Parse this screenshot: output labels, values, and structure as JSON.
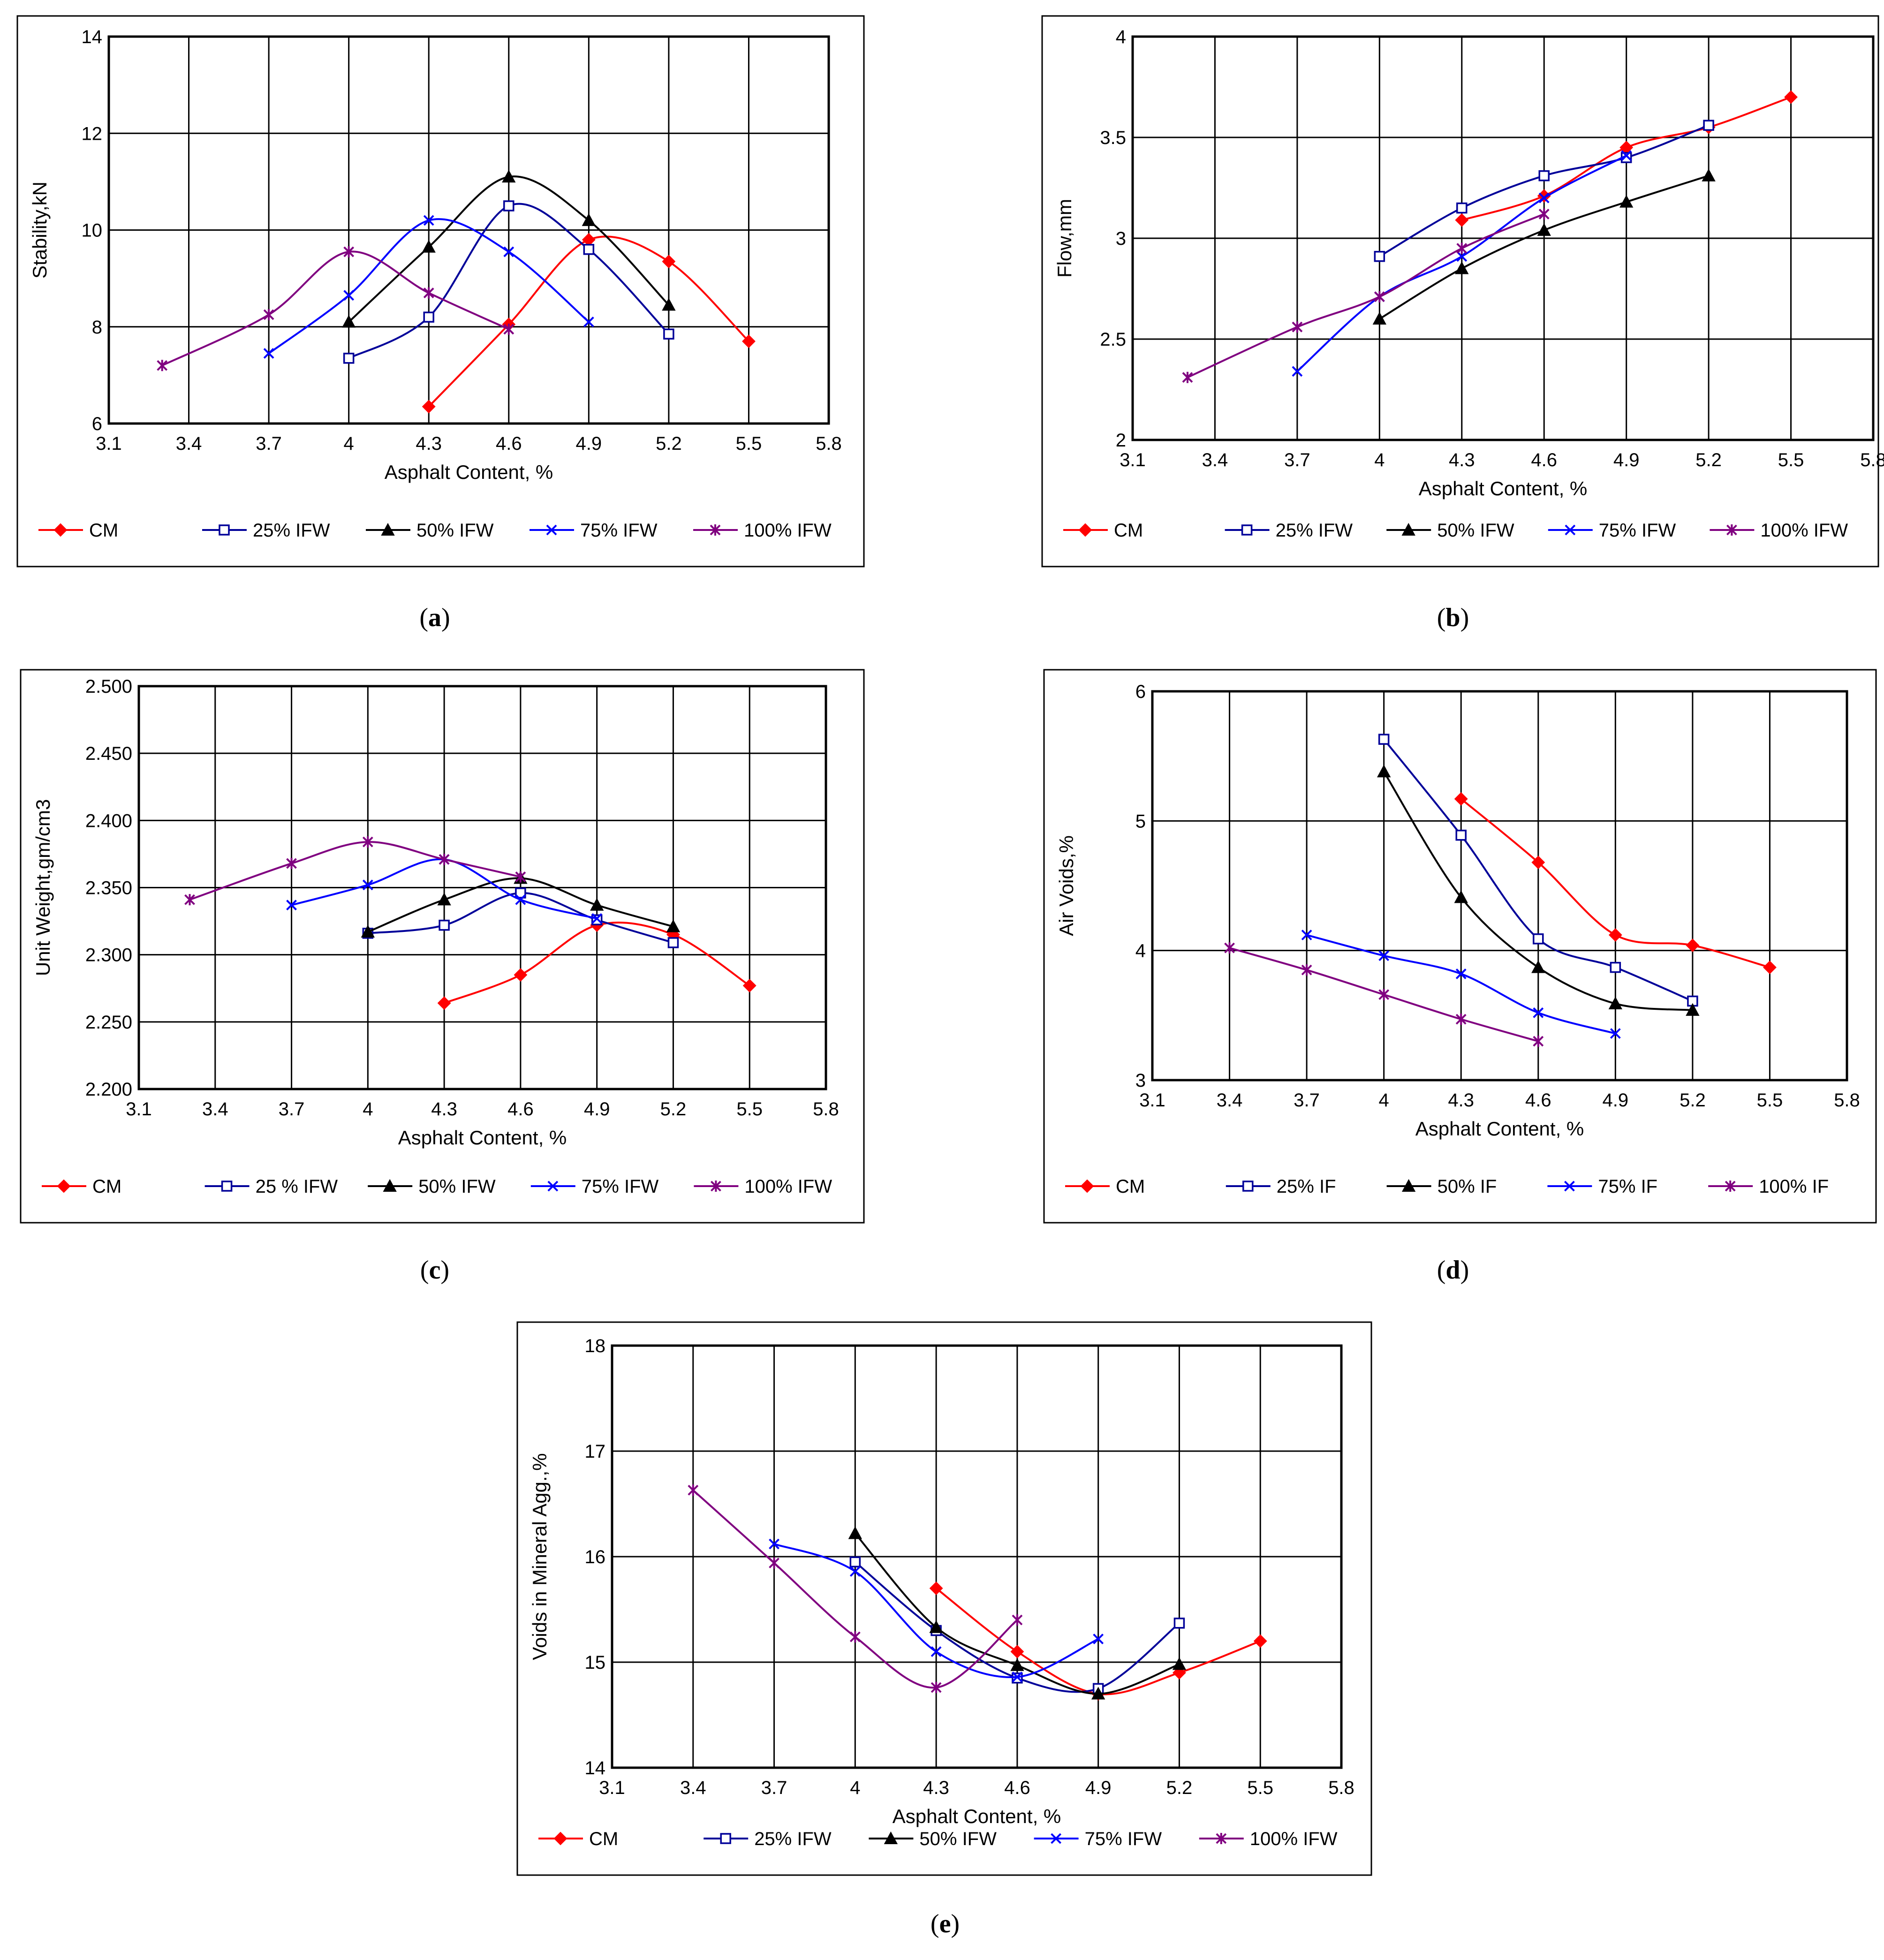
{
  "chart_data": [
    {
      "panel": "a",
      "caption": "a",
      "type": "line",
      "xlabel": "Asphalt Content, %",
      "ylabel": "Stability,kN",
      "xlim": [
        3.1,
        5.8
      ],
      "ylim": [
        6,
        14
      ],
      "xticks": [
        3.1,
        3.4,
        3.7,
        4,
        4.3,
        4.6,
        4.9,
        5.2,
        5.5,
        5.8
      ],
      "yticks": [
        6,
        8,
        10,
        12,
        14
      ],
      "ytick_labels": [
        "6",
        "8",
        "10",
        "12",
        "14"
      ],
      "legend_position": "bottom",
      "series": [
        {
          "name": "CM",
          "color": "#ff0000",
          "marker": "diamond",
          "x": [
            4.3,
            4.6,
            4.9,
            5.2,
            5.5
          ],
          "y": [
            6.35,
            8.05,
            9.8,
            9.35,
            7.7
          ]
        },
        {
          "name": "25% IFW",
          "color": "#000099",
          "marker": "square",
          "x": [
            4.0,
            4.3,
            4.6,
            4.9,
            5.2
          ],
          "y": [
            7.35,
            8.2,
            10.5,
            9.6,
            7.85
          ]
        },
        {
          "name": "50% IFW",
          "color": "#000000",
          "marker": "triangle",
          "x": [
            4.0,
            4.3,
            4.6,
            4.9,
            5.2
          ],
          "y": [
            8.1,
            9.65,
            11.1,
            10.2,
            8.45
          ]
        },
        {
          "name": "75% IFW",
          "color": "#0000ff",
          "marker": "x",
          "x": [
            3.7,
            4.0,
            4.3,
            4.6,
            4.9
          ],
          "y": [
            7.45,
            8.65,
            10.2,
            9.55,
            8.1
          ]
        },
        {
          "name": "100% IFW",
          "color": "#800080",
          "marker": "star",
          "x": [
            3.3,
            3.7,
            4.0,
            4.3,
            4.6
          ],
          "y": [
            7.2,
            8.25,
            9.55,
            8.7,
            7.95
          ]
        }
      ]
    },
    {
      "panel": "b",
      "caption": "b",
      "type": "line",
      "xlabel": "Asphalt Content, %",
      "ylabel": "Flow,mm",
      "xlim": [
        3.1,
        5.8
      ],
      "ylim": [
        2,
        4
      ],
      "xticks": [
        3.1,
        3.4,
        3.7,
        4,
        4.3,
        4.6,
        4.9,
        5.2,
        5.5,
        5.8
      ],
      "yticks": [
        2,
        2.5,
        3,
        3.5,
        4
      ],
      "ytick_labels": [
        "2",
        "2.5",
        "3",
        "3.5",
        "4"
      ],
      "legend_position": "bottom",
      "series": [
        {
          "name": "CM",
          "color": "#ff0000",
          "marker": "diamond",
          "x": [
            4.3,
            4.6,
            4.9,
            5.2,
            5.5
          ],
          "y": [
            3.09,
            3.21,
            3.45,
            3.55,
            3.7
          ]
        },
        {
          "name": "25% IFW",
          "color": "#000099",
          "marker": "square",
          "x": [
            4.0,
            4.3,
            4.6,
            4.9,
            5.2
          ],
          "y": [
            2.91,
            3.15,
            3.31,
            3.4,
            3.56
          ]
        },
        {
          "name": "50% IFW",
          "color": "#000000",
          "marker": "triangle",
          "x": [
            4.0,
            4.3,
            4.6,
            4.9,
            5.2
          ],
          "y": [
            2.6,
            2.85,
            3.04,
            3.18,
            3.31
          ]
        },
        {
          "name": "75% IFW",
          "color": "#0000ff",
          "marker": "x",
          "x": [
            3.7,
            4.0,
            4.3,
            4.6,
            4.9
          ],
          "y": [
            2.34,
            2.71,
            2.91,
            3.2,
            3.41
          ]
        },
        {
          "name": "100% IFW",
          "color": "#800080",
          "marker": "star",
          "x": [
            3.3,
            3.7,
            4.0,
            4.3,
            4.6
          ],
          "y": [
            2.31,
            2.56,
            2.71,
            2.95,
            3.12
          ]
        }
      ]
    },
    {
      "panel": "c",
      "caption": "c",
      "type": "line",
      "xlabel": "Asphalt Content, %",
      "ylabel": "Unit Weight,gm/cm3",
      "xlim": [
        3.1,
        5.8
      ],
      "ylim": [
        2.2,
        2.5
      ],
      "xticks": [
        3.1,
        3.4,
        3.7,
        4,
        4.3,
        4.6,
        4.9,
        5.2,
        5.5,
        5.8
      ],
      "yticks": [
        2.2,
        2.25,
        2.3,
        2.35,
        2.4,
        2.45,
        2.5
      ],
      "ytick_labels": [
        "2.200",
        "2.250",
        "2.300",
        "2.350",
        "2.400",
        "2.450",
        "2.500"
      ],
      "legend_position": "bottom",
      "series": [
        {
          "name": "CM",
          "color": "#ff0000",
          "marker": "diamond",
          "x": [
            4.3,
            4.6,
            4.9,
            5.2,
            5.5
          ],
          "y": [
            2.264,
            2.285,
            2.322,
            2.315,
            2.277
          ]
        },
        {
          "name": "25 % IFW",
          "color": "#000099",
          "marker": "square",
          "x": [
            4.0,
            4.3,
            4.6,
            4.9,
            5.2
          ],
          "y": [
            2.316,
            2.322,
            2.346,
            2.326,
            2.309
          ]
        },
        {
          "name": "50% IFW",
          "color": "#000000",
          "marker": "triangle",
          "x": [
            4.0,
            4.3,
            4.6,
            4.9,
            5.2
          ],
          "y": [
            2.317,
            2.341,
            2.357,
            2.337,
            2.321
          ]
        },
        {
          "name": "75% IFW",
          "color": "#0000ff",
          "marker": "x",
          "x": [
            3.7,
            4.0,
            4.3,
            4.6,
            4.9
          ],
          "y": [
            2.337,
            2.352,
            2.371,
            2.341,
            2.327
          ]
        },
        {
          "name": "100% IFW",
          "color": "#800080",
          "marker": "star",
          "x": [
            3.3,
            3.7,
            4.0,
            4.3,
            4.6
          ],
          "y": [
            2.341,
            2.368,
            2.384,
            2.371,
            2.358
          ]
        }
      ]
    },
    {
      "panel": "d",
      "caption": "d",
      "type": "line",
      "xlabel": "Asphalt Content, %",
      "ylabel": "Air Voids,%",
      "xlim": [
        3.1,
        5.8
      ],
      "ylim": [
        3,
        6
      ],
      "xticks": [
        3.1,
        3.4,
        3.7,
        4,
        4.3,
        4.6,
        4.9,
        5.2,
        5.5,
        5.8
      ],
      "yticks": [
        3,
        4,
        5,
        6
      ],
      "ytick_labels": [
        "3",
        "4",
        "5",
        "6"
      ],
      "legend_position": "bottom",
      "series": [
        {
          "name": "CM",
          "color": "#ff0000",
          "marker": "diamond",
          "x": [
            4.3,
            4.6,
            4.9,
            5.2,
            5.5
          ],
          "y": [
            5.17,
            4.68,
            4.12,
            4.04,
            3.87
          ]
        },
        {
          "name": "25% IF",
          "color": "#000099",
          "marker": "square",
          "x": [
            4.0,
            4.3,
            4.6,
            4.9,
            5.2
          ],
          "y": [
            5.63,
            4.89,
            4.09,
            3.87,
            3.61
          ]
        },
        {
          "name": "50% IF",
          "color": "#000000",
          "marker": "triangle",
          "x": [
            4.0,
            4.3,
            4.6,
            4.9,
            5.2
          ],
          "y": [
            5.38,
            4.41,
            3.87,
            3.59,
            3.54
          ]
        },
        {
          "name": "75% IF",
          "color": "#0000ff",
          "marker": "x",
          "x": [
            3.7,
            4.0,
            4.3,
            4.6,
            4.9
          ],
          "y": [
            4.12,
            3.96,
            3.82,
            3.52,
            3.36
          ]
        },
        {
          "name": "100% IF",
          "color": "#800080",
          "marker": "star",
          "x": [
            3.4,
            3.7,
            4.0,
            4.3,
            4.6
          ],
          "y": [
            4.02,
            3.85,
            3.66,
            3.47,
            3.3
          ]
        }
      ]
    },
    {
      "panel": "e",
      "caption": "e",
      "type": "line",
      "xlabel": "Asphalt Content, %",
      "ylabel": "Voids in Mineral Agg.,%",
      "xlim": [
        3.1,
        5.8
      ],
      "ylim": [
        14,
        18
      ],
      "xticks": [
        3.1,
        3.4,
        3.7,
        4,
        4.3,
        4.6,
        4.9,
        5.2,
        5.5,
        5.8
      ],
      "yticks": [
        14,
        15,
        16,
        17,
        18
      ],
      "ytick_labels": [
        "14",
        "15",
        "16",
        "17",
        "18"
      ],
      "legend_position": "bottom",
      "series": [
        {
          "name": "CM",
          "color": "#ff0000",
          "marker": "diamond",
          "x": [
            4.3,
            4.6,
            4.9,
            5.2,
            5.5
          ],
          "y": [
            15.7,
            15.1,
            14.7,
            14.9,
            15.2
          ]
        },
        {
          "name": "25% IFW",
          "color": "#000099",
          "marker": "square",
          "x": [
            4.0,
            4.3,
            4.6,
            4.9,
            5.2
          ],
          "y": [
            15.95,
            15.3,
            14.85,
            14.75,
            15.37
          ]
        },
        {
          "name": "50% IFW",
          "color": "#000000",
          "marker": "triangle",
          "x": [
            4.0,
            4.3,
            4.6,
            4.9,
            5.2
          ],
          "y": [
            16.22,
            15.33,
            14.97,
            14.7,
            14.98
          ]
        },
        {
          "name": "75% IFW",
          "color": "#0000ff",
          "marker": "x",
          "x": [
            3.7,
            4.0,
            4.3,
            4.6,
            4.9
          ],
          "y": [
            16.12,
            15.86,
            15.1,
            14.86,
            15.22
          ]
        },
        {
          "name": "100% IFW",
          "color": "#800080",
          "marker": "star",
          "x": [
            3.4,
            3.7,
            4.0,
            4.3,
            4.6
          ],
          "y": [
            16.63,
            15.94,
            15.24,
            14.76,
            15.4
          ]
        }
      ]
    }
  ]
}
